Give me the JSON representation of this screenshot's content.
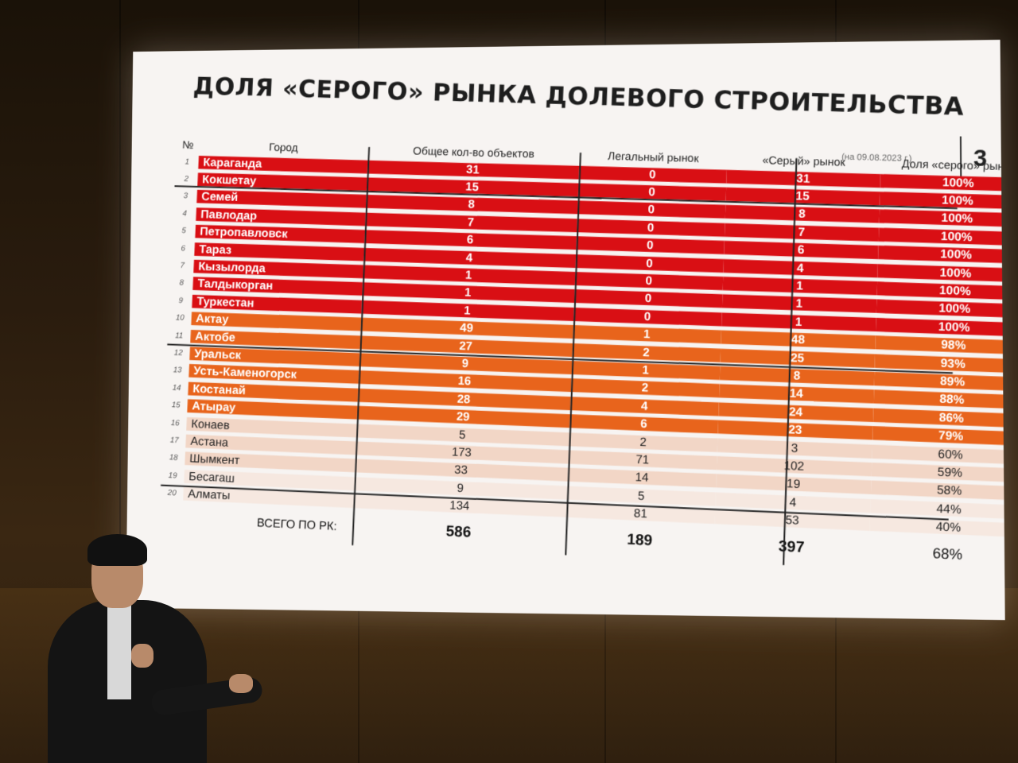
{
  "slide": {
    "title": "ДОЛЯ «СЕРОГО» РЫНКА ДОЛЕВОГО СТРОИТЕЛЬСТВА",
    "date": "(на 09.08.2023 г.)",
    "slide_number": "3",
    "headers": {
      "no": "№",
      "city": "Город",
      "total": "Общее кол-во объектов",
      "legal": "Легальный рынок",
      "grey": "«Серый» рынок",
      "share": "Доля «серого» рынка"
    },
    "rows": [
      {
        "no": "1",
        "city": "Караганда",
        "total": "31",
        "legal": "0",
        "grey": "31",
        "share": "100%"
      },
      {
        "no": "2",
        "city": "Кокшетау",
        "total": "15",
        "legal": "0",
        "grey": "15",
        "share": "100%"
      },
      {
        "no": "3",
        "city": "Семей",
        "total": "8",
        "legal": "0",
        "grey": "8",
        "share": "100%"
      },
      {
        "no": "4",
        "city": "Павлодар",
        "total": "7",
        "legal": "0",
        "grey": "7",
        "share": "100%"
      },
      {
        "no": "5",
        "city": "Петропавловск",
        "total": "6",
        "legal": "0",
        "grey": "6",
        "share": "100%"
      },
      {
        "no": "6",
        "city": "Тараз",
        "total": "4",
        "legal": "0",
        "grey": "4",
        "share": "100%"
      },
      {
        "no": "7",
        "city": "Кызылорда",
        "total": "1",
        "legal": "0",
        "grey": "1",
        "share": "100%"
      },
      {
        "no": "8",
        "city": "Талдыкорган",
        "total": "1",
        "legal": "0",
        "grey": "1",
        "share": "100%"
      },
      {
        "no": "9",
        "city": "Туркестан",
        "total": "1",
        "legal": "0",
        "grey": "1",
        "share": "100%"
      },
      {
        "no": "10",
        "city": "Актау",
        "total": "49",
        "legal": "1",
        "grey": "48",
        "share": "98%"
      },
      {
        "no": "11",
        "city": "Актобе",
        "total": "27",
        "legal": "2",
        "grey": "25",
        "share": "93%"
      },
      {
        "no": "12",
        "city": "Уральск",
        "total": "9",
        "legal": "1",
        "grey": "8",
        "share": "89%"
      },
      {
        "no": "13",
        "city": "Усть-Каменогорск",
        "total": "16",
        "legal": "2",
        "grey": "14",
        "share": "88%"
      },
      {
        "no": "14",
        "city": "Костанай",
        "total": "28",
        "legal": "4",
        "grey": "24",
        "share": "86%"
      },
      {
        "no": "15",
        "city": "Атырау",
        "total": "29",
        "legal": "6",
        "grey": "23",
        "share": "79%"
      },
      {
        "no": "16",
        "city": "Конаев",
        "total": "5",
        "legal": "2",
        "grey": "3",
        "share": "60%"
      },
      {
        "no": "17",
        "city": "Астана",
        "total": "173",
        "legal": "71",
        "grey": "102",
        "share": "59%"
      },
      {
        "no": "18",
        "city": "Шымкент",
        "total": "33",
        "legal": "14",
        "grey": "19",
        "share": "58%"
      },
      {
        "no": "19",
        "city": "Бесагаш",
        "total": "9",
        "legal": "5",
        "grey": "4",
        "share": "44%"
      },
      {
        "no": "20",
        "city": "Алматы",
        "total": "134",
        "legal": "81",
        "grey": "53",
        "share": "40%"
      }
    ],
    "totals": {
      "label": "ВСЕГО ПО РК:",
      "total": "586",
      "legal": "189",
      "grey": "397",
      "share": "68%"
    },
    "colors": {
      "red": "#d90f14",
      "orange": "#e8641c",
      "peach": "#f2d6c6",
      "light": "#f6e8e0"
    }
  }
}
